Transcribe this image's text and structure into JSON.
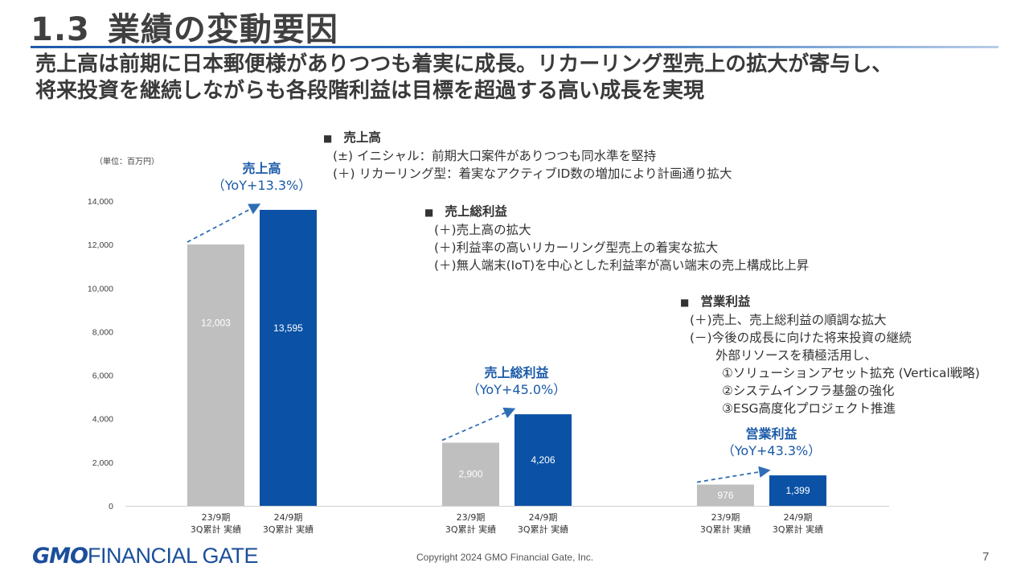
{
  "header": {
    "section_number": "1.3",
    "title": "業績の変動要因",
    "subtitle_lines": [
      "売上高は前期に日本郵便様がありつつも着実に成長。リカーリング型売上の拡大が寄与し、",
      "将来投資を継続しながらも各段階利益は目標を超過する高い成長を実現"
    ]
  },
  "chart_data": {
    "type": "bar",
    "unit_label": "（単位：百万円）",
    "ylim": [
      0,
      14000
    ],
    "y_ticks": [
      "0",
      "2,000",
      "4,000",
      "6,000",
      "8,000",
      "10,000",
      "12,000",
      "14,000"
    ],
    "y_tick_values": [
      0,
      2000,
      4000,
      6000,
      8000,
      10000,
      12000,
      14000
    ],
    "x_label_lines": [
      "期",
      "3Q累計 実績"
    ],
    "groups": [
      {
        "name": "売上高",
        "yoy": "（YoY+13.3%）",
        "categories": [
          [
            "23/9期",
            "3Q累計 実績"
          ],
          [
            "24/9期",
            "3Q累計 実績"
          ]
        ],
        "values": [
          12003,
          13595
        ],
        "value_labels": [
          "12,003",
          "13,595"
        ]
      },
      {
        "name": "売上総利益",
        "yoy": "（YoY+45.0%）",
        "categories": [
          [
            "23/9期",
            "3Q累計 実績"
          ],
          [
            "24/9期",
            "3Q累計 実績"
          ]
        ],
        "values": [
          2900,
          4206
        ],
        "value_labels": [
          "2,900",
          "4,206"
        ]
      },
      {
        "name": "営業利益",
        "yoy": "（YoY+43.3%）",
        "categories": [
          [
            "23/9期",
            "3Q累計 実績"
          ],
          [
            "24/9期",
            "3Q累計 実績"
          ]
        ],
        "values": [
          976,
          1399
        ],
        "value_labels": [
          "976",
          "1,399"
        ]
      }
    ],
    "colors": {
      "prev": "#bfbfbf",
      "curr": "#0b52a6",
      "label_blue": "#1b5aa8",
      "arrow": "#2f6eb5",
      "axis_text": "#404040"
    }
  },
  "notes": [
    {
      "head": "売上高",
      "lines": [
        "(±) イニシャル：前期大口案件がありつつも同水準を堅持",
        "(＋) リカーリング型：着実なアクティブID数の増加により計画通り拡大"
      ]
    },
    {
      "head": "売上総利益",
      "lines": [
        "(＋)売上高の拡大",
        "(＋)利益率の高いリカーリング型売上の着実な拡大",
        "(＋)無人端末(IoT)を中心とした利益率が高い端末の売上構成比上昇"
      ]
    },
    {
      "head": "営業利益",
      "lines": [
        "(＋)売上、売上総利益の順調な拡大",
        "(－)今後の成長に向けた将来投資の継続",
        "外部リソースを積極活用し、",
        "①ソリューションアセット拡充 (Vertical戦略)",
        "②システムインフラ基盤の強化",
        "③ESG高度化プロジェクト推進"
      ]
    }
  ],
  "note_marker": "■",
  "footer": {
    "logo_gmo": "GMO",
    "logo_text": "FINANCIAL GATE",
    "copyright": "Copyright 2024 GMO Financial Gate, Inc.",
    "page_number": "7"
  }
}
